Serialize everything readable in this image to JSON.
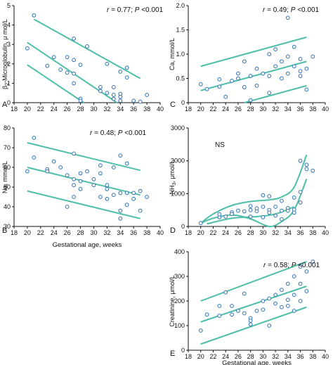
{
  "colors": {
    "line": "#4dbfa8",
    "point": "#2f73b6",
    "axis": "#111111"
  },
  "chart_data": [
    {
      "panel": "A",
      "type": "scatter",
      "ylabel_parts": [
        "β",
        "2",
        "-Microglobulin, μ mol/L"
      ],
      "annotation_parts": [
        "r",
        " = 0.77; ",
        "P",
        " <0.001"
      ],
      "xlim": [
        18,
        40
      ],
      "ylim": [
        0,
        5
      ],
      "xticks": [
        18,
        20,
        22,
        24,
        26,
        28,
        30,
        32,
        34,
        36,
        38,
        40
      ],
      "yticks": [
        0,
        1,
        2,
        3,
        4,
        5
      ],
      "points": [
        [
          20,
          2.8
        ],
        [
          21,
          4.5
        ],
        [
          23,
          1.9
        ],
        [
          24,
          2.35
        ],
        [
          25,
          1.7
        ],
        [
          26,
          2.35
        ],
        [
          26,
          1.55
        ],
        [
          27,
          3.3
        ],
        [
          27,
          2.2
        ],
        [
          27,
          1.5
        ],
        [
          27,
          1.0
        ],
        [
          28,
          1.95
        ],
        [
          28,
          0.2
        ],
        [
          28,
          0.1
        ],
        [
          29,
          2.9
        ],
        [
          31,
          0.8
        ],
        [
          31,
          0.6
        ],
        [
          32,
          2.0
        ],
        [
          32,
          0.5
        ],
        [
          33,
          0.8
        ],
        [
          33,
          0.4
        ],
        [
          33,
          0.2
        ],
        [
          34,
          1.6
        ],
        [
          34,
          0.45
        ],
        [
          34,
          0.3
        ],
        [
          34,
          0.1
        ],
        [
          35,
          1.8
        ],
        [
          35,
          1.3
        ],
        [
          36,
          0.1
        ],
        [
          37,
          0.05
        ],
        [
          38,
          0.4
        ]
      ],
      "curves": [
        [
          [
            21,
            4.3
          ],
          [
            37,
            1.25
          ]
        ],
        [
          [
            20,
            3.1
          ],
          [
            33.5,
            0
          ]
        ],
        [
          [
            20,
            1.95
          ],
          [
            28.5,
            0
          ]
        ]
      ]
    },
    {
      "panel": "B",
      "type": "scatter",
      "ylabel_parts": [
        "Na, mmol/L"
      ],
      "annotation_parts": [
        "r",
        " = 0.48; ",
        "P",
        " <0.001"
      ],
      "xlabel": "Gestational age, weeks",
      "xlim": [
        18,
        40
      ],
      "ylim": [
        30,
        80
      ],
      "xticks": [
        18,
        20,
        22,
        24,
        26,
        28,
        30,
        32,
        34,
        36,
        38,
        40
      ],
      "yticks": [
        30,
        40,
        50,
        60,
        70,
        80
      ],
      "points": [
        [
          20,
          58
        ],
        [
          21,
          75
        ],
        [
          21,
          65
        ],
        [
          23,
          59
        ],
        [
          23,
          58
        ],
        [
          24,
          63
        ],
        [
          25,
          60
        ],
        [
          26,
          56
        ],
        [
          26,
          40
        ],
        [
          27,
          67
        ],
        [
          27,
          54
        ],
        [
          27,
          51
        ],
        [
          27,
          45
        ],
        [
          28,
          53
        ],
        [
          28,
          49
        ],
        [
          28,
          57
        ],
        [
          29,
          58
        ],
        [
          30,
          54
        ],
        [
          30,
          51
        ],
        [
          31,
          61
        ],
        [
          31,
          57
        ],
        [
          31,
          45
        ],
        [
          32,
          51
        ],
        [
          32,
          49
        ],
        [
          32,
          44
        ],
        [
          33,
          60
        ],
        [
          33,
          46
        ],
        [
          34,
          47
        ],
        [
          34,
          66
        ],
        [
          34,
          38
        ],
        [
          34,
          34
        ],
        [
          35,
          62
        ],
        [
          35,
          47
        ],
        [
          35,
          41
        ],
        [
          36,
          47
        ],
        [
          36,
          44
        ],
        [
          37,
          48
        ],
        [
          37,
          38
        ],
        [
          38,
          45
        ]
      ],
      "curves": [
        [
          [
            20,
            72.5
          ],
          [
            37,
            58.5
          ]
        ],
        [
          [
            20,
            60
          ],
          [
            37,
            46
          ]
        ],
        [
          [
            20,
            48
          ],
          [
            37,
            34
          ]
        ]
      ]
    },
    {
      "panel": "C",
      "type": "scatter",
      "ylabel_parts": [
        "Ca, mmol/L"
      ],
      "annotation_parts": [
        "r",
        " = 0.49; ",
        "P",
        " <0.001"
      ],
      "xlim": [
        18,
        40
      ],
      "ylim": [
        0,
        2.0
      ],
      "xticks": [
        18,
        20,
        22,
        24,
        26,
        28,
        30,
        32,
        34,
        36,
        38,
        40
      ],
      "yticks": [
        0,
        0.5,
        1.0,
        1.5,
        2.0
      ],
      "ytick_labels": [
        "0",
        "0.5",
        "1.0",
        "1.5",
        "2.0"
      ],
      "points": [
        [
          20,
          0.38
        ],
        [
          21,
          0.28
        ],
        [
          23,
          0.33
        ],
        [
          23,
          0.48
        ],
        [
          24,
          0.12
        ],
        [
          25,
          0.45
        ],
        [
          26,
          0.5
        ],
        [
          26,
          0.6
        ],
        [
          27,
          0.85
        ],
        [
          27,
          0.32
        ],
        [
          28,
          0.05
        ],
        [
          28,
          0.55
        ],
        [
          29,
          0.7
        ],
        [
          29,
          0.35
        ],
        [
          30,
          0.6
        ],
        [
          31,
          1.0
        ],
        [
          31,
          0.55
        ],
        [
          31,
          0.2
        ],
        [
          32,
          1.1
        ],
        [
          32,
          0.75
        ],
        [
          33,
          0.85
        ],
        [
          33,
          0.5
        ],
        [
          34,
          1.75
        ],
        [
          34,
          0.95
        ],
        [
          34,
          0.6
        ],
        [
          35,
          1.15
        ],
        [
          35,
          0.75
        ],
        [
          36,
          0.9
        ],
        [
          36,
          0.65
        ],
        [
          36,
          0.55
        ],
        [
          37,
          0.27
        ],
        [
          37,
          0.7
        ],
        [
          38,
          0.95
        ]
      ],
      "curves": [
        [
          [
            20,
            0.75
          ],
          [
            37,
            1.35
          ]
        ],
        [
          [
            20,
            0.25
          ],
          [
            37,
            0.85
          ]
        ],
        [
          [
            27,
            0
          ],
          [
            37,
            0.35
          ]
        ]
      ]
    },
    {
      "panel": "D",
      "type": "scatter",
      "ylabel_parts": [
        "NH",
        "3",
        ", μmol/L"
      ],
      "annotation_parts": [
        "NS"
      ],
      "xlim": [
        18,
        40
      ],
      "ylim": [
        0,
        3000
      ],
      "xticks": [
        18,
        20,
        22,
        24,
        26,
        28,
        30,
        32,
        34,
        36,
        38,
        40
      ],
      "yticks": [
        0,
        1000,
        2000,
        3000
      ],
      "points": [
        [
          20,
          100
        ],
        [
          23,
          280
        ],
        [
          23,
          370
        ],
        [
          24,
          300
        ],
        [
          25,
          430
        ],
        [
          25,
          380
        ],
        [
          26,
          480
        ],
        [
          27,
          460
        ],
        [
          28,
          300
        ],
        [
          28,
          500
        ],
        [
          28,
          620
        ],
        [
          29,
          470
        ],
        [
          29,
          550
        ],
        [
          30,
          950
        ],
        [
          30,
          600
        ],
        [
          30,
          280
        ],
        [
          31,
          500
        ],
        [
          31,
          420
        ],
        [
          31,
          920
        ],
        [
          32,
          600
        ],
        [
          32,
          330
        ],
        [
          33,
          480
        ],
        [
          33,
          220
        ],
        [
          33,
          780
        ],
        [
          34,
          560
        ],
        [
          34,
          480
        ],
        [
          35,
          880
        ],
        [
          35,
          510
        ],
        [
          35,
          420
        ],
        [
          36,
          2000
        ],
        [
          36,
          1050
        ],
        [
          36,
          730
        ],
        [
          37,
          1880
        ],
        [
          37,
          1750
        ],
        [
          38,
          1700
        ]
      ],
      "curves": [
        [
          [
            20,
            100
          ],
          [
            22,
            380
          ],
          [
            25,
            640
          ],
          [
            28,
            760
          ],
          [
            31,
            810
          ],
          [
            33,
            900
          ],
          [
            35,
            1200
          ],
          [
            37,
            2180
          ]
        ],
        [
          [
            20,
            100
          ],
          [
            22,
            250
          ],
          [
            25,
            350
          ],
          [
            28,
            230
          ],
          [
            31,
            0
          ],
          [
            33,
            150
          ],
          [
            35,
            500
          ],
          [
            37,
            1450
          ]
        ],
        [
          [
            21,
            80
          ],
          [
            25,
            250
          ],
          [
            29,
            300
          ],
          [
            32,
            380
          ],
          [
            35,
            600
          ]
        ]
      ]
    },
    {
      "panel": "E",
      "type": "scatter",
      "ylabel_parts": [
        "Creatinine, μmol/L"
      ],
      "annotation_parts": [
        "r",
        " = 0.58; ",
        "P",
        " <0.001"
      ],
      "xlabel": "Gestational age, weeks",
      "xlim": [
        18,
        40
      ],
      "ylim": [
        0,
        400
      ],
      "xticks": [
        18,
        20,
        22,
        24,
        26,
        28,
        30,
        32,
        34,
        36,
        38,
        40
      ],
      "yticks": [
        0,
        100,
        200,
        300,
        400
      ],
      "points": [
        [
          20,
          80
        ],
        [
          21,
          145
        ],
        [
          23,
          140
        ],
        [
          23,
          180
        ],
        [
          24,
          235
        ],
        [
          25,
          180
        ],
        [
          25,
          145
        ],
        [
          26,
          160
        ],
        [
          27,
          230
        ],
        [
          27,
          150
        ],
        [
          28,
          130
        ],
        [
          28,
          120
        ],
        [
          28,
          105
        ],
        [
          29,
          160
        ],
        [
          30,
          200
        ],
        [
          30,
          165
        ],
        [
          31,
          100
        ],
        [
          31,
          210
        ],
        [
          32,
          225
        ],
        [
          32,
          190
        ],
        [
          33,
          245
        ],
        [
          33,
          175
        ],
        [
          34,
          270
        ],
        [
          34,
          205
        ],
        [
          34,
          180
        ],
        [
          35,
          300
        ],
        [
          35,
          225
        ],
        [
          35,
          160
        ],
        [
          36,
          340
        ],
        [
          36,
          270
        ],
        [
          36,
          200
        ],
        [
          37,
          320
        ],
        [
          37,
          240
        ],
        [
          38,
          360
        ]
      ],
      "curves": [
        [
          [
            20,
            200
          ],
          [
            37,
            360
          ]
        ],
        [
          [
            20,
            115
          ],
          [
            37,
            260
          ]
        ],
        [
          [
            20,
            25
          ],
          [
            37,
            175
          ]
        ]
      ]
    }
  ]
}
